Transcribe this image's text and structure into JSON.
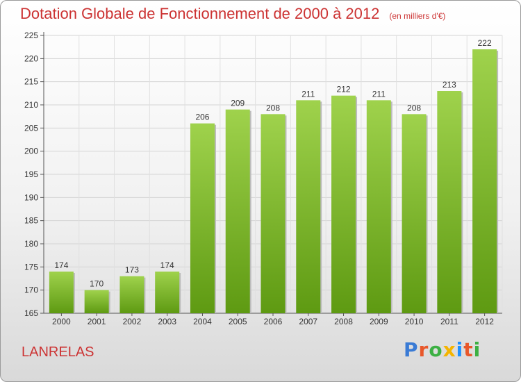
{
  "header": {
    "title": "Dotation Globale de Fonctionnement de 2000 à 2012",
    "subtitle": "(en milliers d'€)"
  },
  "footer": {
    "commune": "LANRELAS",
    "logo": "Proxiti",
    "logo_colors": [
      "#3a7bd5",
      "#e8572a",
      "#3cb043",
      "#f4b400",
      "#1e90ff",
      "#e8572a",
      "#3cb043"
    ]
  },
  "chart_data": {
    "type": "bar",
    "categories": [
      "2000",
      "2001",
      "2002",
      "2003",
      "2004",
      "2005",
      "2006",
      "2007",
      "2008",
      "2009",
      "2010",
      "2011",
      "2012"
    ],
    "values": [
      174,
      170,
      173,
      174,
      206,
      209,
      208,
      211,
      212,
      211,
      208,
      213,
      222
    ],
    "ylim": [
      165,
      225
    ],
    "yticks": [
      165,
      170,
      175,
      180,
      185,
      190,
      195,
      200,
      205,
      210,
      215,
      220,
      225
    ],
    "grid": true,
    "bar_color_top": "#9fd24c",
    "bar_color_bottom": "#5e9a12"
  }
}
